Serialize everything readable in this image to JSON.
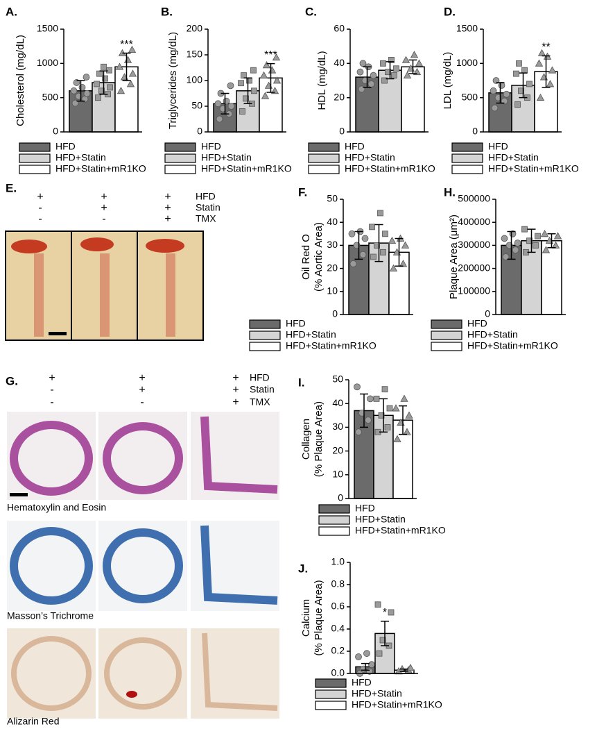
{
  "chart_data": [
    {
      "type": "bar",
      "label": "A.",
      "ylabel": [
        "Cholesterol (mg/dL)"
      ],
      "categories": [
        "HFD",
        "HFD+Statin",
        "HFD+Statin+mR1KO"
      ],
      "colors": [
        "#6b6b6b",
        "#d4d4d4",
        "#ffffff"
      ],
      "values": [
        600,
        720,
        950
      ],
      "errors": [
        150,
        170,
        200
      ],
      "significance": [
        null,
        null,
        "***"
      ],
      "points": [
        [
          420,
          480,
          520,
          560,
          600,
          650,
          720,
          800
        ],
        [
          500,
          550,
          600,
          650,
          700,
          780,
          850,
          900,
          950
        ],
        [
          600,
          700,
          800,
          850,
          950,
          1050,
          1150,
          1200
        ]
      ],
      "ylim": [
        0,
        1500
      ],
      "yticks": [
        0,
        500,
        1000,
        1500
      ]
    },
    {
      "type": "bar",
      "label": "B.",
      "ylabel": [
        "Triglycerides (mg/dL)"
      ],
      "categories": [
        "HFD",
        "HFD+Statin",
        "HFD+Statin+mR1KO"
      ],
      "colors": [
        "#6b6b6b",
        "#d4d4d4",
        "#ffffff"
      ],
      "values": [
        55,
        80,
        105
      ],
      "errors": [
        20,
        25,
        28
      ],
      "significance": [
        null,
        null,
        "***"
      ],
      "points": [
        [
          25,
          35,
          45,
          50,
          55,
          60,
          75,
          90
        ],
        [
          40,
          55,
          65,
          80,
          95,
          100,
          110,
          120
        ],
        [
          70,
          80,
          90,
          100,
          110,
          120,
          130,
          145
        ]
      ],
      "ylim": [
        0,
        200
      ],
      "yticks": [
        0,
        50,
        100,
        150,
        200
      ]
    },
    {
      "type": "bar",
      "label": "C.",
      "ylabel": [
        "HDL (mg/dL)"
      ],
      "categories": [
        "HFD",
        "HFD+Statin",
        "HFD+Statin+mR1KO"
      ],
      "colors": [
        "#6b6b6b",
        "#d4d4d4",
        "#ffffff"
      ],
      "values": [
        32,
        36,
        38
      ],
      "errors": [
        6,
        5,
        4
      ],
      "significance": [
        null,
        null,
        null
      ],
      "points": [
        [
          25,
          28,
          30,
          33,
          35,
          38,
          40
        ],
        [
          30,
          33,
          35,
          37,
          40,
          42
        ],
        [
          33,
          35,
          37,
          40,
          42,
          45
        ]
      ],
      "ylim": [
        0,
        60
      ],
      "yticks": [
        0,
        20,
        40,
        60
      ]
    },
    {
      "type": "bar",
      "label": "D.",
      "ylabel": [
        "LDL (mg/dL)"
      ],
      "categories": [
        "HFD",
        "HFD+Statin",
        "HFD+Statin+mR1KO"
      ],
      "colors": [
        "#6b6b6b",
        "#d4d4d4",
        "#ffffff"
      ],
      "values": [
        570,
        680,
        880
      ],
      "errors": [
        150,
        180,
        230
      ],
      "significance": [
        null,
        null,
        "**"
      ],
      "points": [
        [
          350,
          450,
          500,
          550,
          600,
          680,
          750
        ],
        [
          400,
          500,
          600,
          700,
          850,
          900,
          1000
        ],
        [
          500,
          700,
          800,
          900,
          1000,
          1100,
          1150
        ]
      ],
      "ylim": [
        0,
        1500
      ],
      "yticks": [
        0,
        500,
        1000,
        1500
      ]
    },
    {
      "type": "bar",
      "label": "F.",
      "ylabel": [
        "Oil Red O",
        "(% Aortic Area)"
      ],
      "categories": [
        "HFD",
        "HFD+Statin",
        "HFD+Statin+mR1KO"
      ],
      "colors": [
        "#6b6b6b",
        "#d4d4d4",
        "#ffffff"
      ],
      "values": [
        30,
        31,
        27
      ],
      "errors": [
        6,
        8,
        6
      ],
      "significance": [
        null,
        null,
        null
      ],
      "points": [
        [
          22,
          26,
          30,
          33,
          35,
          36
        ],
        [
          25,
          27,
          30,
          35,
          38,
          44
        ],
        [
          20,
          22,
          27,
          30,
          32,
          33
        ]
      ],
      "ylim": [
        0,
        50
      ],
      "yticks": [
        0,
        10,
        20,
        30,
        40,
        50
      ]
    },
    {
      "type": "bar",
      "label": "H.",
      "ylabel": [
        "Plaque Area (μm²)"
      ],
      "categories": [
        "HFD",
        "HFD+Statin",
        "HFD+Statin+mR1KO"
      ],
      "colors": [
        "#6b6b6b",
        "#d4d4d4",
        "#ffffff"
      ],
      "values": [
        300000,
        320000,
        320000
      ],
      "errors": [
        60000,
        50000,
        30000
      ],
      "significance": [
        null,
        null,
        null
      ],
      "points": [
        [
          250000,
          280000,
          300000,
          310000,
          330000,
          350000
        ],
        [
          270000,
          300000,
          320000,
          340000,
          370000
        ],
        [
          280000,
          300000,
          320000,
          340000,
          350000
        ]
      ],
      "ylim": [
        0,
        500000
      ],
      "yticks": [
        0,
        100000,
        200000,
        300000,
        400000,
        500000
      ]
    },
    {
      "type": "bar",
      "label": "I.",
      "ylabel": [
        "Collagen",
        "(% Plaque Area)"
      ],
      "categories": [
        "HFD",
        "HFD+Statin",
        "HFD+Statin+mR1KO"
      ],
      "colors": [
        "#6b6b6b",
        "#d4d4d4",
        "#ffffff"
      ],
      "values": [
        37,
        35,
        33
      ],
      "errors": [
        7,
        7,
        6
      ],
      "significance": [
        null,
        null,
        null
      ],
      "points": [
        [
          28,
          33,
          36,
          42,
          47
        ],
        [
          28,
          30,
          35,
          38,
          42,
          46
        ],
        [
          25,
          28,
          32,
          35,
          38,
          42
        ]
      ],
      "ylim": [
        0,
        50
      ],
      "yticks": [
        0,
        10,
        20,
        30,
        40,
        50
      ]
    },
    {
      "type": "bar",
      "label": "J.",
      "ylabel": [
        "Calcium",
        "(% Plaque Area)"
      ],
      "categories": [
        "HFD",
        "HFD+Statin",
        "HFD+Statin+mR1KO"
      ],
      "colors": [
        "#6b6b6b",
        "#d4d4d4",
        "#ffffff"
      ],
      "values": [
        0.06,
        0.36,
        0.03
      ],
      "errors": [
        0.03,
        0.11,
        0.01
      ],
      "significance": [
        null,
        "*",
        null
      ],
      "points": [
        [
          0.0,
          0.02,
          0.04,
          0.08,
          0.15,
          0.18
        ],
        [
          0.18,
          0.25,
          0.3,
          0.55,
          0.62
        ],
        [
          0.02,
          0.03,
          0.04,
          0.05
        ]
      ],
      "ylim": [
        0,
        1
      ],
      "yticks": [
        {
          "value": 0,
          "label": "0.0"
        },
        {
          "value": 0.2,
          "label": "0.2"
        },
        {
          "value": 0.4,
          "label": "0.4"
        },
        {
          "value": 0.6,
          "label": "0.6"
        },
        {
          "value": 0.8,
          "label": "0.8"
        },
        {
          "value": 1,
          "label": "1.0"
        }
      ]
    }
  ],
  "panel_E": {
    "label": "E.",
    "rows": [
      {
        "name": "HFD",
        "marks": [
          "+",
          "+",
          "+"
        ]
      },
      {
        "name": "Statin",
        "marks": [
          "-",
          "+",
          "+"
        ]
      },
      {
        "name": "TMX",
        "marks": [
          "-",
          "-",
          "+"
        ]
      }
    ]
  },
  "panel_G": {
    "label": "G.",
    "rows": [
      {
        "name": "HFD",
        "marks": [
          "+",
          "+",
          "+"
        ]
      },
      {
        "name": "Statin",
        "marks": [
          "-",
          "+",
          "+"
        ]
      },
      {
        "name": "TMX",
        "marks": [
          "-",
          "-",
          "+"
        ]
      }
    ],
    "captions": [
      "Hematoxylin and Eosin",
      "Masson’s Trichrome",
      "Alizarin Red"
    ]
  }
}
